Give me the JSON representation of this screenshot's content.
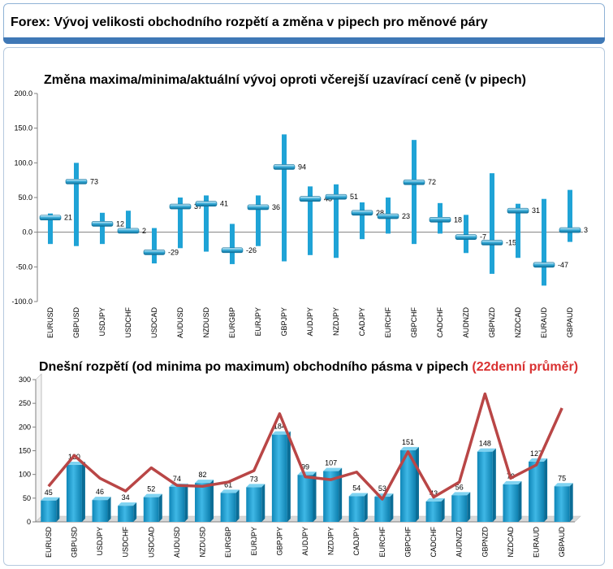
{
  "page": {
    "title": "Forex: Vývoj velikosti obchodního rozpětí a změna v pipech pro měnové páry"
  },
  "colors": {
    "bar": "#1fa3d6",
    "bar_dark": "#0f86b7",
    "average_line": "#b94646",
    "highlight": "#d93131"
  },
  "chart_data": [
    {
      "type": "bar",
      "title": "Změna maxima/minima/aktuální vývoj oproti včerejší uzavírací ceně (v pipech)",
      "categories": [
        "EURUSD",
        "GBPUSD",
        "USDJPY",
        "USDCHF",
        "USDCAD",
        "AUDUSD",
        "NZDUSD",
        "EURGBP",
        "EURJPY",
        "GBPJPY",
        "AUDJPY",
        "NZDJPY",
        "CADJPY",
        "EURCHF",
        "GBPCHF",
        "CADCHF",
        "AUDNZD",
        "GBPNZD",
        "NZDCAD",
        "EURAUD",
        "GBPAUD"
      ],
      "series": [
        {
          "name": "",
          "values": [
            27,
            100,
            28,
            31,
            6,
            50,
            53,
            12,
            53,
            141,
            66,
            69,
            43,
            50,
            133,
            42,
            25,
            85,
            41,
            48,
            61
          ]
        },
        {
          "name": "",
          "values": [
            -17,
            -20,
            -17,
            2,
            -45,
            -23,
            -28,
            -46,
            -20,
            -42,
            -33,
            -37,
            -10,
            -2,
            -17,
            -2,
            -30,
            -60,
            -37,
            -77,
            -14
          ]
        },
        {
          "name": "",
          "values": [
            21,
            73,
            12,
            2,
            -29,
            37,
            41,
            -26,
            36,
            94,
            48,
            51,
            28,
            23,
            72,
            18,
            -7,
            -15,
            31,
            -47,
            3
          ]
        }
      ],
      "value_labels": [
        "21",
        "73",
        "12",
        "2",
        "-29",
        "37",
        "41",
        "-26",
        "36",
        "94",
        "48",
        "51",
        "28",
        "23",
        "72",
        "18",
        "-7",
        "-15",
        "31",
        "-47",
        "3"
      ],
      "ylim": [
        -100,
        200
      ],
      "yticks": [
        "200.0",
        "150.0",
        "100.0",
        "50.0",
        "0.0",
        "-50.0",
        "-100.0"
      ],
      "grid": false
    },
    {
      "type": "bar",
      "title": "Dnešní rozpětí (od minima po maximum) obchodního pásma v pipech",
      "title_highlight": "(22denní průměr)",
      "categories": [
        "EURUSD",
        "GBPUSD",
        "USDJPY",
        "USDCHF",
        "USDCAD",
        "AUDUSD",
        "NZDUSD",
        "EURGBP",
        "EURJPY",
        "GBPJPY",
        "AUDJPY",
        "NZDJPY",
        "CADJPY",
        "EURCHF",
        "GBPCHF",
        "CADCHF",
        "AUDNZD",
        "GBPNZD",
        "NZDCAD",
        "EURAUD",
        "GBPAUD"
      ],
      "series": [
        {
          "name": "",
          "values": [
            45,
            120,
            46,
            34,
            52,
            74,
            82,
            61,
            73,
            184,
            99,
            107,
            54,
            53,
            151,
            43,
            56,
            148,
            79,
            127,
            75
          ]
        },
        {
          "name": "",
          "values": [
            75,
            140,
            92,
            65,
            114,
            77,
            75,
            84,
            108,
            228,
            95,
            89,
            105,
            48,
            148,
            52,
            84,
            270,
            92,
            120,
            240
          ]
        }
      ],
      "value_labels": [
        "45",
        "120",
        "46",
        "34",
        "52",
        "74",
        "82",
        "61",
        "73",
        "184",
        "99",
        "107",
        "54",
        "53",
        "151",
        "43",
        "56",
        "148",
        "79",
        "127",
        "75"
      ],
      "ylim": [
        0,
        300
      ],
      "yticks": [
        "300",
        "250",
        "200",
        "150",
        "100",
        "50",
        "0"
      ],
      "grid": false
    }
  ]
}
